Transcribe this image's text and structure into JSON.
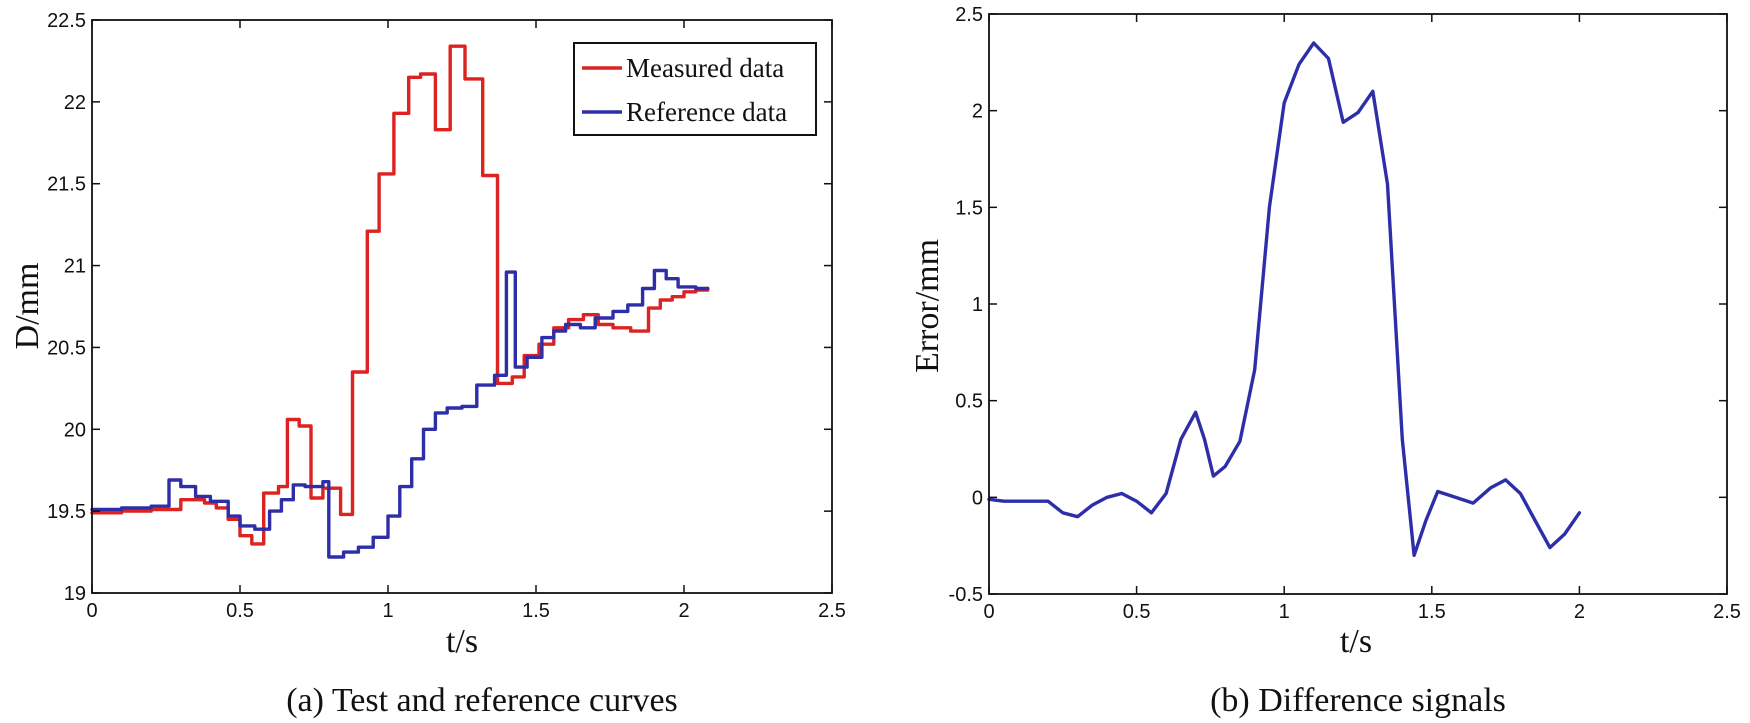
{
  "chart_data": [
    {
      "type": "line",
      "line_style": "step",
      "caption": "(a) Test and reference curves",
      "xlabel": "t/s",
      "ylabel": "D/mm",
      "xlim": [
        0,
        2.5
      ],
      "ylim": [
        19,
        22.5
      ],
      "xticks": [
        0,
        0.5,
        1,
        1.5,
        2,
        2.5
      ],
      "xtick_labels": [
        "0",
        "0.5",
        "1",
        "1.5",
        "2",
        "2.5"
      ],
      "yticks": [
        19,
        19.5,
        20,
        20.5,
        21,
        21.5,
        22,
        22.5
      ],
      "ytick_labels": [
        "19",
        "19.5",
        "20",
        "20.5",
        "21",
        "21.5",
        "22",
        "22.5"
      ],
      "grid": false,
      "legend_position": "top-right",
      "series": [
        {
          "name": "Measured data",
          "color": "#dd2222",
          "points": [
            [
              0,
              19.49
            ],
            [
              0.1,
              19.5
            ],
            [
              0.2,
              19.51
            ],
            [
              0.3,
              19.57
            ],
            [
              0.38,
              19.55
            ],
            [
              0.42,
              19.52
            ],
            [
              0.46,
              19.45
            ],
            [
              0.5,
              19.35
            ],
            [
              0.54,
              19.3
            ],
            [
              0.58,
              19.61
            ],
            [
              0.63,
              19.65
            ],
            [
              0.66,
              20.06
            ],
            [
              0.7,
              20.02
            ],
            [
              0.74,
              19.58
            ],
            [
              0.78,
              19.64
            ],
            [
              0.84,
              19.48
            ],
            [
              0.88,
              20.35
            ],
            [
              0.93,
              21.21
            ],
            [
              0.97,
              21.56
            ],
            [
              1.02,
              21.93
            ],
            [
              1.07,
              22.15
            ],
            [
              1.11,
              22.17
            ],
            [
              1.16,
              21.83
            ],
            [
              1.21,
              22.34
            ],
            [
              1.26,
              22.14
            ],
            [
              1.32,
              21.55
            ],
            [
              1.37,
              20.28
            ],
            [
              1.42,
              20.32
            ],
            [
              1.46,
              20.45
            ],
            [
              1.51,
              20.52
            ],
            [
              1.56,
              20.62
            ],
            [
              1.61,
              20.67
            ],
            [
              1.66,
              20.7
            ],
            [
              1.71,
              20.64
            ],
            [
              1.76,
              20.62
            ],
            [
              1.82,
              20.6
            ],
            [
              1.88,
              20.74
            ],
            [
              1.92,
              20.79
            ],
            [
              1.96,
              20.81
            ],
            [
              2.0,
              20.84
            ],
            [
              2.04,
              20.85
            ],
            [
              2.08,
              20.86
            ]
          ]
        },
        {
          "name": "Reference data",
          "color": "#2e2fa8",
          "points": [
            [
              0,
              19.51
            ],
            [
              0.1,
              19.52
            ],
            [
              0.2,
              19.53
            ],
            [
              0.26,
              19.69
            ],
            [
              0.3,
              19.65
            ],
            [
              0.35,
              19.59
            ],
            [
              0.4,
              19.56
            ],
            [
              0.46,
              19.47
            ],
            [
              0.5,
              19.41
            ],
            [
              0.55,
              19.39
            ],
            [
              0.6,
              19.5
            ],
            [
              0.64,
              19.57
            ],
            [
              0.68,
              19.66
            ],
            [
              0.72,
              19.65
            ],
            [
              0.78,
              19.68
            ],
            [
              0.8,
              19.22
            ],
            [
              0.85,
              19.25
            ],
            [
              0.9,
              19.28
            ],
            [
              0.95,
              19.34
            ],
            [
              1.0,
              19.47
            ],
            [
              1.04,
              19.65
            ],
            [
              1.08,
              19.82
            ],
            [
              1.12,
              20.0
            ],
            [
              1.16,
              20.1
            ],
            [
              1.2,
              20.13
            ],
            [
              1.25,
              20.14
            ],
            [
              1.3,
              20.27
            ],
            [
              1.36,
              20.33
            ],
            [
              1.4,
              20.96
            ],
            [
              1.43,
              20.38
            ],
            [
              1.47,
              20.44
            ],
            [
              1.52,
              20.56
            ],
            [
              1.56,
              20.6
            ],
            [
              1.6,
              20.64
            ],
            [
              1.65,
              20.62
            ],
            [
              1.7,
              20.68
            ],
            [
              1.76,
              20.72
            ],
            [
              1.81,
              20.76
            ],
            [
              1.86,
              20.86
            ],
            [
              1.9,
              20.97
            ],
            [
              1.94,
              20.92
            ],
            [
              1.98,
              20.87
            ],
            [
              2.04,
              20.86
            ],
            [
              2.08,
              20.86
            ]
          ]
        }
      ]
    },
    {
      "type": "line",
      "caption": "(b) Difference signals",
      "xlabel": "t/s",
      "ylabel": "Error/mm",
      "xlim": [
        0,
        2.5
      ],
      "ylim": [
        -0.5,
        2.5
      ],
      "xticks": [
        0,
        0.5,
        1,
        1.5,
        2,
        2.5
      ],
      "xtick_labels": [
        "0",
        "0.5",
        "1",
        "1.5",
        "2",
        "2.5"
      ],
      "yticks": [
        -0.5,
        0,
        0.5,
        1,
        1.5,
        2,
        2.5
      ],
      "ytick_labels": [
        "-0.5",
        "0",
        "0.5",
        "1",
        "1.5",
        "2",
        "2.5"
      ],
      "grid": false,
      "series": [
        {
          "name": "Difference",
          "color": "#2e2fa8",
          "points": [
            [
              0,
              -0.01
            ],
            [
              0.05,
              -0.02
            ],
            [
              0.1,
              -0.02
            ],
            [
              0.15,
              -0.02
            ],
            [
              0.2,
              -0.02
            ],
            [
              0.25,
              -0.08
            ],
            [
              0.3,
              -0.1
            ],
            [
              0.35,
              -0.04
            ],
            [
              0.4,
              0.0
            ],
            [
              0.45,
              0.02
            ],
            [
              0.5,
              -0.02
            ],
            [
              0.55,
              -0.08
            ],
            [
              0.6,
              0.02
            ],
            [
              0.65,
              0.3
            ],
            [
              0.7,
              0.44
            ],
            [
              0.73,
              0.3
            ],
            [
              0.76,
              0.11
            ],
            [
              0.8,
              0.16
            ],
            [
              0.85,
              0.29
            ],
            [
              0.9,
              0.66
            ],
            [
              0.95,
              1.5
            ],
            [
              1.0,
              2.04
            ],
            [
              1.05,
              2.24
            ],
            [
              1.1,
              2.35
            ],
            [
              1.15,
              2.27
            ],
            [
              1.2,
              1.94
            ],
            [
              1.25,
              1.99
            ],
            [
              1.3,
              2.1
            ],
            [
              1.35,
              1.62
            ],
            [
              1.4,
              0.3
            ],
            [
              1.44,
              -0.3
            ],
            [
              1.48,
              -0.12
            ],
            [
              1.52,
              0.03
            ],
            [
              1.58,
              0.0
            ],
            [
              1.64,
              -0.03
            ],
            [
              1.7,
              0.05
            ],
            [
              1.75,
              0.09
            ],
            [
              1.8,
              0.02
            ],
            [
              1.85,
              -0.12
            ],
            [
              1.9,
              -0.26
            ],
            [
              1.95,
              -0.19
            ],
            [
              2.0,
              -0.08
            ]
          ]
        }
      ]
    }
  ]
}
